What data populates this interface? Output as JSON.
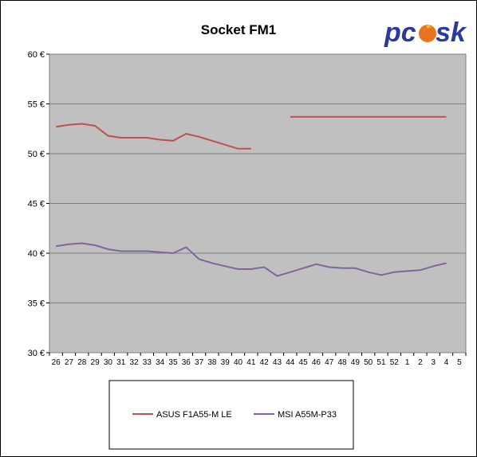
{
  "chart_data": {
    "type": "line",
    "title": "Socket FM1",
    "xlabel": "",
    "ylabel": "",
    "ylim": [
      30,
      60
    ],
    "yticks": [
      "30 €",
      "35 €",
      "40 €",
      "45 €",
      "50 €",
      "55 €",
      "60 €"
    ],
    "categories": [
      "26",
      "27",
      "28",
      "29",
      "30",
      "31",
      "32",
      "33",
      "34",
      "35",
      "36",
      "37",
      "38",
      "39",
      "40",
      "41",
      "42",
      "43",
      "44",
      "45",
      "46",
      "47",
      "48",
      "49",
      "50",
      "51",
      "52",
      "1",
      "2",
      "3",
      "4",
      "5"
    ],
    "series": [
      {
        "name": "ASUS F1A55-M LE",
        "color": "#c0504d",
        "values": [
          52.7,
          52.9,
          53.0,
          52.8,
          51.8,
          51.6,
          51.6,
          51.6,
          51.4,
          51.3,
          52.0,
          51.7,
          51.3,
          50.9,
          50.5,
          50.5,
          null,
          null,
          53.7,
          53.7,
          53.7,
          53.7,
          53.7,
          53.7,
          53.7,
          53.7,
          53.7,
          53.7,
          53.7,
          53.7,
          53.7,
          null
        ]
      },
      {
        "name": "MSI A55M-P33",
        "color": "#8064a2",
        "values": [
          40.7,
          40.9,
          41.0,
          40.8,
          40.4,
          40.2,
          40.2,
          40.2,
          40.1,
          40.0,
          40.6,
          39.4,
          39.0,
          38.7,
          38.4,
          38.4,
          38.6,
          37.7,
          38.1,
          38.5,
          38.9,
          38.6,
          38.5,
          38.5,
          38.1,
          37.8,
          38.1,
          38.2,
          38.3,
          38.7,
          39.0,
          null
        ]
      }
    ],
    "grid": true,
    "legend": "bottom"
  },
  "logo": {
    "text_pc": "pc",
    "text_tsk": "sk",
    "color": "#2a3a9c",
    "flame_color": "#e8731e"
  }
}
